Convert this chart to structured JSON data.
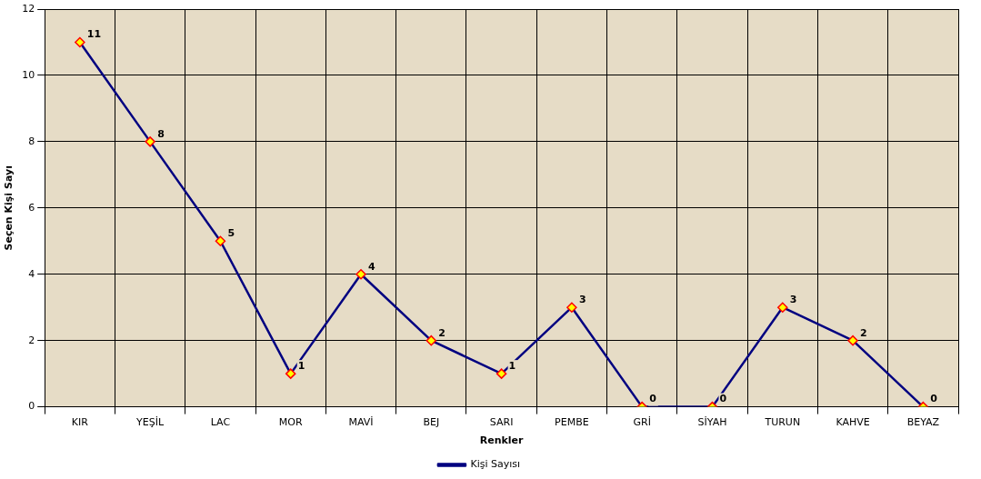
{
  "chart_data": {
    "type": "line",
    "xlabel": "Renkler",
    "ylabel": "Seçen Kişi Sayı",
    "categories": [
      "KIR",
      "YEŞİL",
      "LAC",
      "MOR",
      "MAVİ",
      "BEJ",
      "SARI",
      "PEMBE",
      "GRİ",
      "SİYAH",
      "TURUN",
      "KAHVE",
      "BEYAZ"
    ],
    "series": [
      {
        "name": "Kişi Sayısı",
        "color": "#000080",
        "values": [
          11,
          8,
          5,
          1,
          4,
          2,
          1,
          3,
          0,
          0,
          3,
          2,
          0
        ]
      }
    ],
    "ylim": [
      0,
      12
    ],
    "yticks": [
      0,
      2,
      4,
      6,
      8,
      10,
      12
    ],
    "grid": true,
    "legend": "bottom",
    "marker": "diamond",
    "line_style": "solid",
    "data_labels": true
  }
}
